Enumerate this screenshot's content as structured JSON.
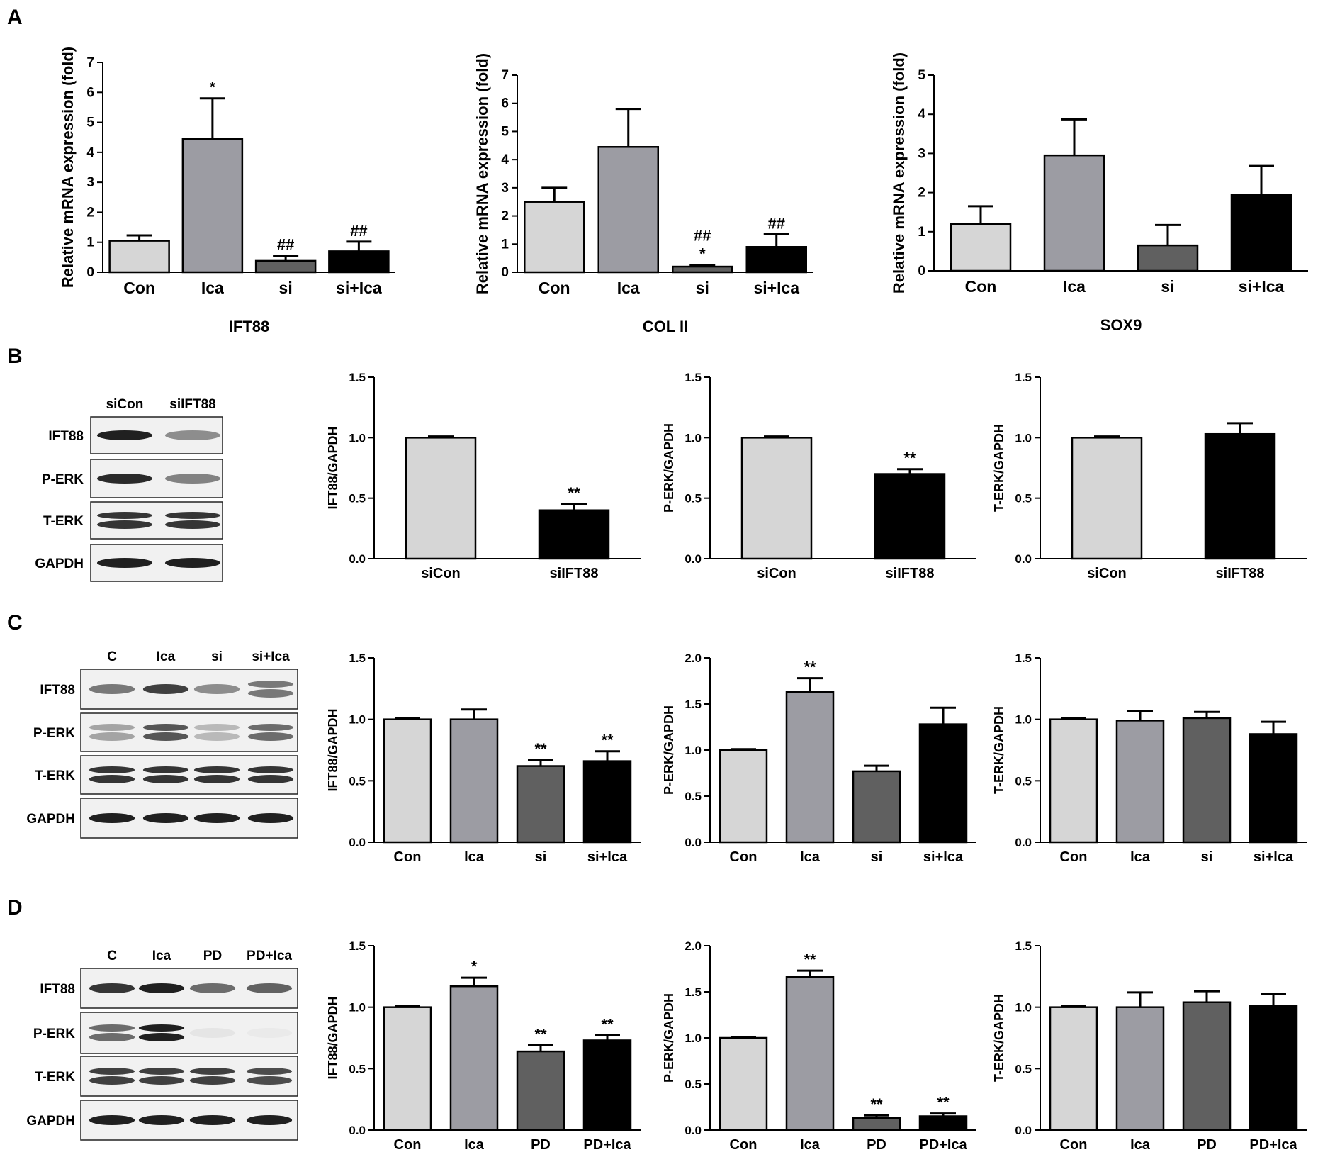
{
  "panels": {
    "A": {
      "letter": "A"
    },
    "B": {
      "letter": "B",
      "blot": {
        "lanes": [
          "siCon",
          "siIFT88"
        ],
        "rows": [
          "IFT88",
          "P-ERK",
          "T-ERK",
          "GAPDH"
        ]
      }
    },
    "C": {
      "letter": "C",
      "blot": {
        "lanes": [
          "C",
          "Ica",
          "si",
          "si+Ica"
        ],
        "rows": [
          "IFT88",
          "P-ERK",
          "T-ERK",
          "GAPDH"
        ]
      }
    },
    "D": {
      "letter": "D",
      "blot": {
        "lanes": [
          "C",
          "Ica",
          "PD",
          "PD+Ica"
        ],
        "rows": [
          "IFT88",
          "P-ERK",
          "T-ERK",
          "GAPDH"
        ]
      }
    }
  },
  "colors": {
    "light": "#d6d6d6",
    "mid": "#9c9ca3",
    "dark": "#606060",
    "black": "#000000"
  },
  "chart_data": [
    {
      "id": "A1",
      "type": "bar",
      "xlabel": "IFT88",
      "ylabel": "Relative mRNA expression (fold)",
      "categories": [
        "Con",
        "Ica",
        "si",
        "si+Ica"
      ],
      "values": [
        1.05,
        4.45,
        0.38,
        0.7
      ],
      "errors": [
        0.18,
        1.35,
        0.17,
        0.32
      ],
      "annotations": [
        [],
        [
          "*"
        ],
        [
          "##"
        ],
        [
          "##"
        ]
      ],
      "ylim": [
        0,
        7
      ],
      "yticks": [
        0,
        1,
        2,
        3,
        4,
        5,
        6,
        7
      ]
    },
    {
      "id": "A2",
      "type": "bar",
      "xlabel": "COL II",
      "ylabel": "Relative mRNA expression (fold)",
      "categories": [
        "Con",
        "Ica",
        "si",
        "si+Ica"
      ],
      "values": [
        2.5,
        4.45,
        0.2,
        0.9
      ],
      "errors": [
        0.5,
        1.35,
        0.06,
        0.45
      ],
      "annotations": [
        [],
        [],
        [
          "##",
          "*"
        ],
        [
          "##"
        ]
      ],
      "ylim": [
        0,
        7
      ],
      "yticks": [
        0,
        1,
        2,
        3,
        4,
        5,
        6,
        7
      ]
    },
    {
      "id": "A3",
      "type": "bar",
      "xlabel": "SOX9",
      "ylabel": "Relative mRNA expression (fold)",
      "categories": [
        "Con",
        "Ica",
        "si",
        "si+Ica"
      ],
      "values": [
        1.2,
        2.95,
        0.65,
        1.95
      ],
      "errors": [
        0.45,
        0.92,
        0.52,
        0.73
      ],
      "annotations": [
        [],
        [],
        [],
        []
      ],
      "ylim": [
        0,
        5
      ],
      "yticks": [
        0,
        1,
        2,
        3,
        4,
        5
      ]
    },
    {
      "id": "B1",
      "type": "bar",
      "xlabel": "",
      "ylabel": "IFT88/GAPDH",
      "categories": [
        "siCon",
        "siIFT88"
      ],
      "values": [
        1.0,
        0.4
      ],
      "errors": [
        0.01,
        0.05
      ],
      "annotations": [
        [],
        [
          "**"
        ]
      ],
      "ylim": [
        0,
        1.5
      ],
      "yticks": [
        "0.0",
        "0.5",
        "1.0",
        "1.5"
      ]
    },
    {
      "id": "B2",
      "type": "bar",
      "xlabel": "",
      "ylabel": "P-ERK/GAPDH",
      "categories": [
        "siCon",
        "siIFT88"
      ],
      "values": [
        1.0,
        0.7
      ],
      "errors": [
        0.01,
        0.04
      ],
      "annotations": [
        [],
        [
          "**"
        ]
      ],
      "ylim": [
        0,
        1.5
      ],
      "yticks": [
        "0.0",
        "0.5",
        "1.0",
        "1.5"
      ]
    },
    {
      "id": "B3",
      "type": "bar",
      "xlabel": "",
      "ylabel": "T-ERK/GAPDH",
      "categories": [
        "siCon",
        "siIFT88"
      ],
      "values": [
        1.0,
        1.03
      ],
      "errors": [
        0.01,
        0.09
      ],
      "annotations": [
        [],
        []
      ],
      "ylim": [
        0,
        1.5
      ],
      "yticks": [
        "0.0",
        "0.5",
        "1.0",
        "1.5"
      ]
    },
    {
      "id": "C1",
      "type": "bar",
      "xlabel": "",
      "ylabel": "IFT88/GAPDH",
      "categories": [
        "Con",
        "Ica",
        "si",
        "si+Ica"
      ],
      "values": [
        1.0,
        1.0,
        0.62,
        0.66
      ],
      "errors": [
        0.01,
        0.08,
        0.05,
        0.08
      ],
      "annotations": [
        [],
        [],
        [
          "**"
        ],
        [
          "**"
        ]
      ],
      "ylim": [
        0,
        1.5
      ],
      "yticks": [
        "0.0",
        "0.5",
        "1.0",
        "1.5"
      ]
    },
    {
      "id": "C2",
      "type": "bar",
      "xlabel": "",
      "ylabel": "P-ERK/GAPDH",
      "categories": [
        "Con",
        "Ica",
        "si",
        "si+Ica"
      ],
      "values": [
        1.0,
        1.63,
        0.77,
        1.28
      ],
      "errors": [
        0.01,
        0.15,
        0.06,
        0.18
      ],
      "annotations": [
        [],
        [
          "**"
        ],
        [],
        []
      ],
      "ylim": [
        0,
        2.0
      ],
      "yticks": [
        "0.0",
        "0.5",
        "1.0",
        "1.5",
        "2.0"
      ]
    },
    {
      "id": "C3",
      "type": "bar",
      "xlabel": "",
      "ylabel": "T-ERK/GAPDH",
      "categories": [
        "Con",
        "Ica",
        "si",
        "si+Ica"
      ],
      "values": [
        1.0,
        0.99,
        1.01,
        0.88
      ],
      "errors": [
        0.01,
        0.08,
        0.05,
        0.1
      ],
      "annotations": [
        [],
        [],
        [],
        []
      ],
      "ylim": [
        0,
        1.5
      ],
      "yticks": [
        "0.0",
        "0.5",
        "1.0",
        "1.5"
      ]
    },
    {
      "id": "D1",
      "type": "bar",
      "xlabel": "",
      "ylabel": "IFT88/GAPDH",
      "categories": [
        "Con",
        "Ica",
        "PD",
        "PD+Ica"
      ],
      "values": [
        1.0,
        1.17,
        0.64,
        0.73
      ],
      "errors": [
        0.01,
        0.07,
        0.05,
        0.04
      ],
      "annotations": [
        [],
        [
          "*"
        ],
        [
          "**"
        ],
        [
          "**"
        ]
      ],
      "ylim": [
        0,
        1.5
      ],
      "yticks": [
        "0.0",
        "0.5",
        "1.0",
        "1.5"
      ]
    },
    {
      "id": "D2",
      "type": "bar",
      "xlabel": "",
      "ylabel": "P-ERK/GAPDH",
      "categories": [
        "Con",
        "Ica",
        "PD",
        "PD+Ica"
      ],
      "values": [
        1.0,
        1.66,
        0.13,
        0.15
      ],
      "errors": [
        0.01,
        0.07,
        0.03,
        0.03
      ],
      "annotations": [
        [],
        [
          "**"
        ],
        [
          "**"
        ],
        [
          "**"
        ]
      ],
      "ylim": [
        0,
        2.0
      ],
      "yticks": [
        "0.0",
        "0.5",
        "1.0",
        "1.5",
        "2.0"
      ]
    },
    {
      "id": "D3",
      "type": "bar",
      "xlabel": "",
      "ylabel": "T-ERK/GAPDH",
      "categories": [
        "Con",
        "Ica",
        "PD",
        "PD+Ica"
      ],
      "values": [
        1.0,
        1.0,
        1.04,
        1.01
      ],
      "errors": [
        0.01,
        0.12,
        0.09,
        0.1
      ],
      "annotations": [
        [],
        [],
        [],
        []
      ],
      "ylim": [
        0,
        1.5
      ],
      "yticks": [
        "0.0",
        "0.5",
        "1.0",
        "1.5"
      ]
    }
  ]
}
